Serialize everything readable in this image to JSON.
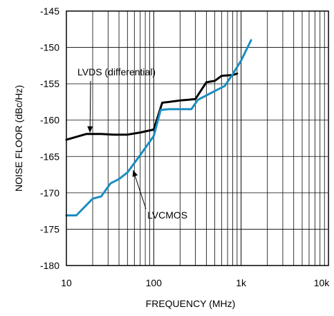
{
  "chart_data": {
    "type": "line",
    "title": "",
    "xlabel": "FREQUENCY (MHz)",
    "ylabel": "NOISE FLOOR (dBc/Hz)",
    "x_scale": "log",
    "xlim": [
      10,
      10000
    ],
    "ylim": [
      -180,
      -145
    ],
    "grid": true,
    "x_ticks": [
      10,
      100,
      1000,
      10000
    ],
    "x_tick_labels": [
      "10",
      "100",
      "1k",
      "10k"
    ],
    "y_ticks": [
      -145,
      -150,
      -155,
      -160,
      -165,
      -170,
      -175,
      -180
    ],
    "y_tick_labels": [
      "-145",
      "-150",
      "-155",
      "-160",
      "-165",
      "-170",
      "-175",
      "-180"
    ],
    "series": [
      {
        "name": "LVDS (differential)",
        "color": "#000000",
        "x": [
          10,
          17,
          25,
          35,
          50,
          70,
          100,
          125,
          150,
          200,
          250,
          300,
          400,
          500,
          600,
          800,
          900
        ],
        "y": [
          -162.7,
          -161.9,
          -161.9,
          -162.0,
          -162.0,
          -161.7,
          -161.3,
          -157.6,
          -157.5,
          -157.3,
          -157.2,
          -157.1,
          -154.8,
          -154.6,
          -153.9,
          -153.8,
          -153.6
        ]
      },
      {
        "name": "LVCMOS",
        "color": "#1a8cc1",
        "x": [
          10,
          13,
          20,
          25,
          32,
          40,
          50,
          70,
          100,
          120,
          150,
          200,
          270,
          320,
          400,
          500,
          650,
          800,
          1000,
          1300
        ],
        "y": [
          -173.1,
          -173.1,
          -170.8,
          -170.5,
          -168.7,
          -168.1,
          -167.2,
          -164.8,
          -162.2,
          -158.6,
          -158.5,
          -158.5,
          -158.5,
          -157.2,
          -156.6,
          -156.0,
          -155.3,
          -153.7,
          -151.8,
          -149.0
        ]
      }
    ],
    "annotations": [
      {
        "text": "LVDS (differential)",
        "series": 0
      },
      {
        "text": "LVCMOS",
        "series": 1
      }
    ]
  }
}
